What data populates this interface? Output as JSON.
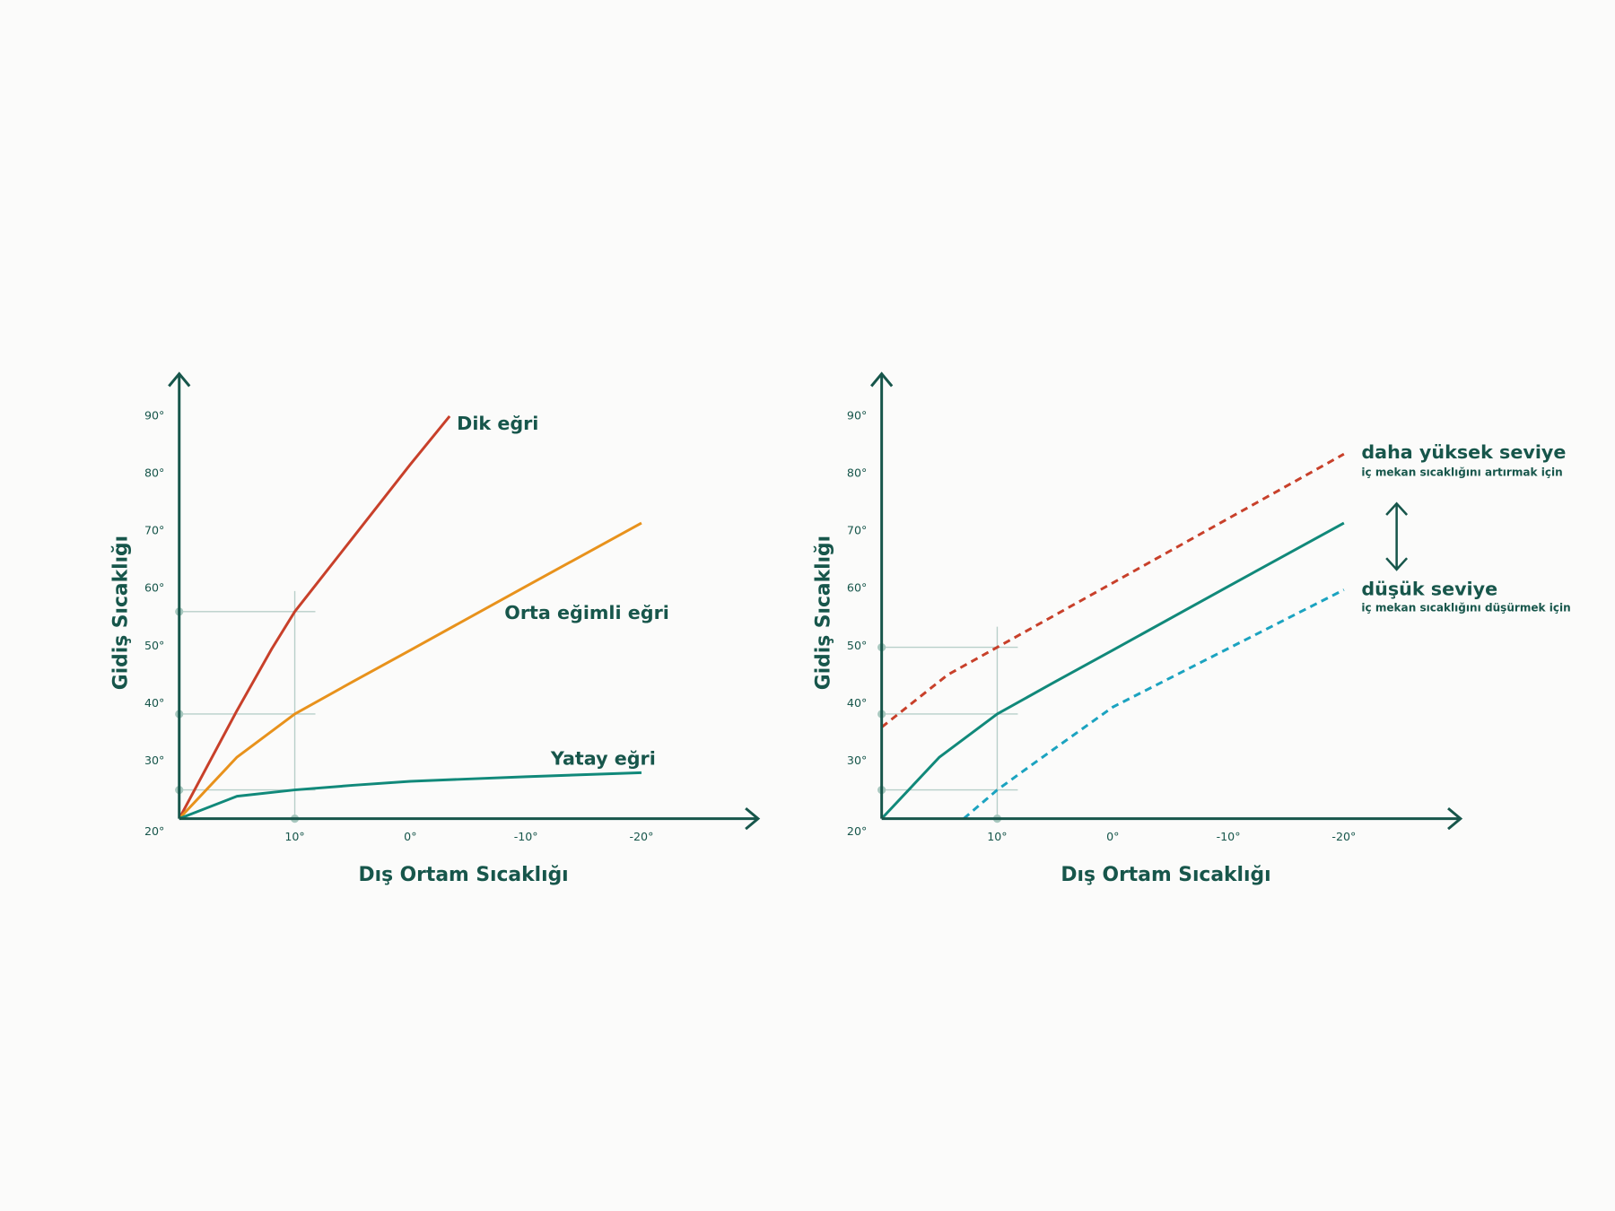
{
  "chart_data": [
    {
      "type": "line",
      "x_label": "Dış Ortam Sıcaklığı",
      "y_label": "Gidiş Sıcaklığı",
      "xlim": [
        20,
        -30
      ],
      "ylim": [
        20,
        97
      ],
      "xticks": [
        {
          "value": 10,
          "label": "10°"
        },
        {
          "value": 0,
          "label": "0°"
        },
        {
          "value": -10,
          "label": "-10°"
        },
        {
          "value": -20,
          "label": "-20°"
        }
      ],
      "yticks": [
        {
          "value": 20,
          "label": "20°"
        },
        {
          "value": 30,
          "label": "30°"
        },
        {
          "value": 40,
          "label": "40°"
        },
        {
          "value": 50,
          "label": "50°"
        },
        {
          "value": 60,
          "label": "60°"
        },
        {
          "value": 70,
          "label": "70°"
        },
        {
          "value": 80,
          "label": "80°"
        },
        {
          "value": 90,
          "label": "90°"
        }
      ],
      "reference_x": 10,
      "reference_y": [
        56,
        38.2,
        25
      ],
      "series": [
        {
          "name": "Dik eğri",
          "color": "#c8402a",
          "x": [
            20,
            15,
            12,
            10,
            5,
            0,
            -3.4
          ],
          "values": [
            20,
            38.8,
            49.5,
            56,
            68.8,
            81.6,
            90
          ]
        },
        {
          "name": "Orta eğimli eğri",
          "color": "#e8921c",
          "x": [
            20,
            15,
            10,
            5,
            0,
            -10,
            -20
          ],
          "values": [
            20,
            30.7,
            38.2,
            43.8,
            49.3,
            60.4,
            71.4
          ]
        },
        {
          "name": "Yatay eğri",
          "color": "#11897a",
          "x": [
            20,
            15,
            10,
            5,
            0,
            -10,
            -20
          ],
          "values": [
            20,
            23.9,
            25,
            25.8,
            26.5,
            27.3,
            28
          ]
        }
      ]
    },
    {
      "type": "line",
      "x_label": "Dış Ortam Sıcaklığı",
      "y_label": "Gidiş Sıcaklığı",
      "xlim": [
        20,
        -30
      ],
      "ylim": [
        20,
        97
      ],
      "xticks": [
        {
          "value": 10,
          "label": "10°"
        },
        {
          "value": 0,
          "label": "0°"
        },
        {
          "value": -10,
          "label": "-10°"
        },
        {
          "value": -20,
          "label": "-20°"
        }
      ],
      "yticks": [
        {
          "value": 20,
          "label": "20°"
        },
        {
          "value": 30,
          "label": "30°"
        },
        {
          "value": 40,
          "label": "40°"
        },
        {
          "value": 50,
          "label": "50°"
        },
        {
          "value": 60,
          "label": "60°"
        },
        {
          "value": 70,
          "label": "70°"
        },
        {
          "value": 80,
          "label": "80°"
        },
        {
          "value": 90,
          "label": "90°"
        }
      ],
      "reference_x": 10,
      "reference_y": [
        49.8,
        38.2,
        25
      ],
      "series": [
        {
          "name": "daha yüksek seviye",
          "note": "iç mekan sıcaklığını artırmak için",
          "color": "#c8402a",
          "dashed": true,
          "x": [
            20,
            14.3,
            10,
            0,
            -10,
            -20
          ],
          "values": [
            35.9,
            45,
            49.8,
            61,
            72.2,
            83.4
          ]
        },
        {
          "color": "#11897a",
          "x": [
            20,
            15,
            10,
            5,
            0,
            -10,
            -20
          ],
          "values": [
            20,
            30.7,
            38.2,
            43.8,
            49.3,
            60.4,
            71.4
          ]
        },
        {
          "name": "düşük seviye",
          "note": "iç mekan sıcaklığını düşürmek için",
          "color": "#1ba3c0",
          "dashed": true,
          "x": [
            12.9,
            10,
            6.7,
            0,
            -10,
            -20
          ],
          "values": [
            20,
            25,
            29.8,
            39.4,
            49.6,
            59.8
          ]
        }
      ]
    }
  ]
}
